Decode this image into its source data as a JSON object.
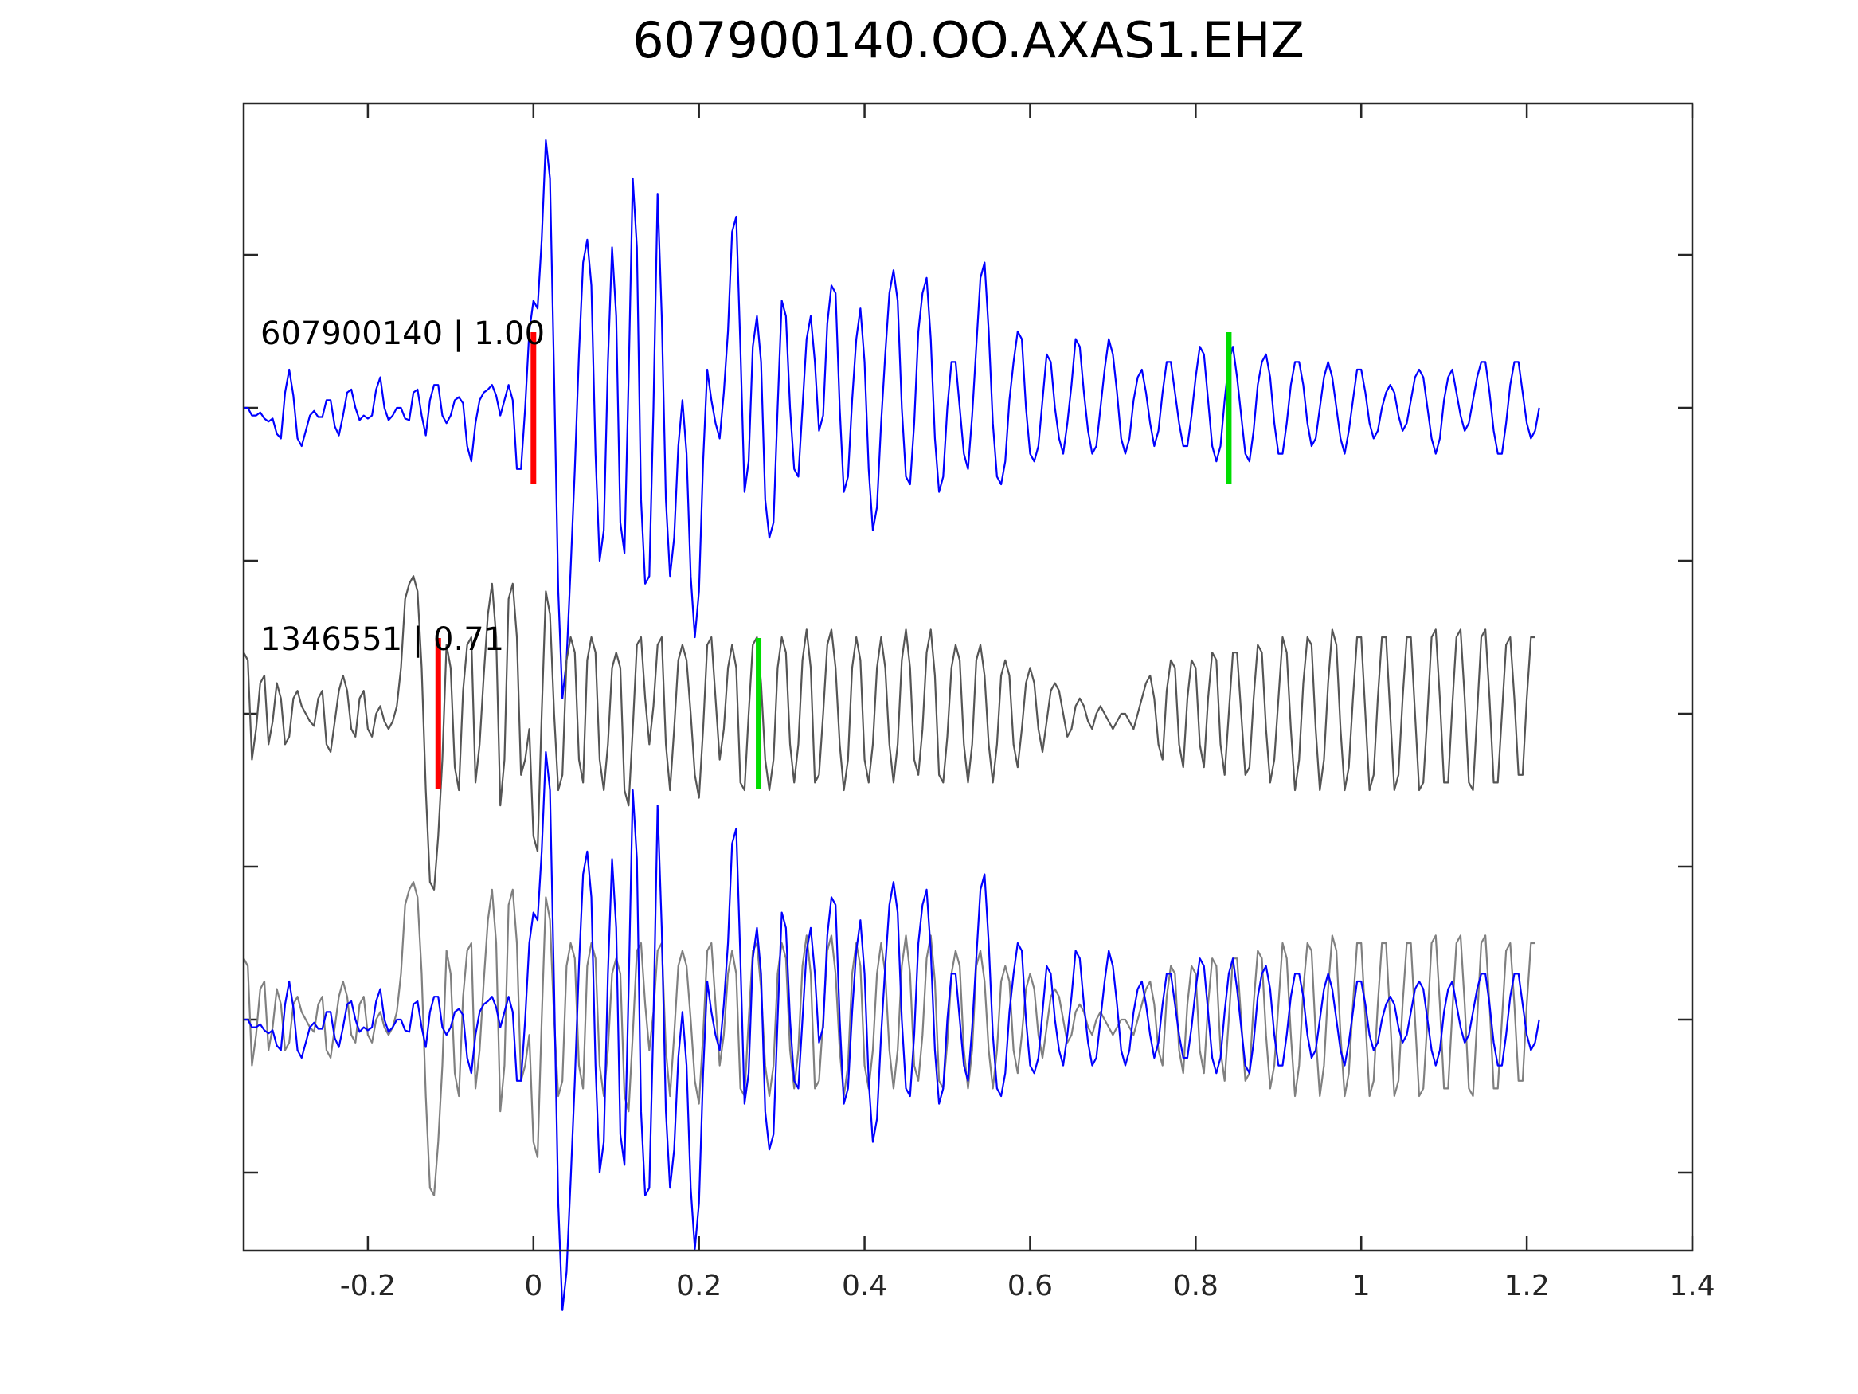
{
  "chart_data": {
    "type": "line",
    "title": "607900140.OO.AXAS1.EHZ",
    "xlabel": "",
    "ylabel": "",
    "xlim": [
      -0.35,
      1.4
    ],
    "x_ticks": [
      -0.2,
      0,
      0.2,
      0.4,
      0.6,
      0.8,
      1,
      1.2,
      1.4
    ],
    "x_tick_labels": [
      "-0.2",
      "0",
      "0.2",
      "0.4",
      "0.6",
      "0.8",
      "1",
      "1.2",
      "1.4"
    ],
    "y_tick_count": 7,
    "y_tick_labels_shown": false,
    "grid": false,
    "sample_interval": 0.005,
    "panels": [
      {
        "label": "607900140 | 1.00",
        "traces": [
          {
            "role": "reference",
            "color": "#0000ff",
            "t0": -0.35,
            "dt": 0.005,
            "values": [
              0.0,
              0.0,
              -0.05,
              -0.05,
              -0.03,
              -0.07,
              -0.09,
              -0.07,
              -0.17,
              -0.2,
              0.1,
              0.25,
              0.08,
              -0.2,
              -0.25,
              -0.15,
              -0.05,
              -0.02,
              -0.06,
              -0.06,
              0.05,
              0.05,
              -0.12,
              -0.18,
              -0.05,
              0.1,
              0.12,
              0.0,
              -0.08,
              -0.05,
              -0.07,
              -0.05,
              0.12,
              0.2,
              0.0,
              -0.08,
              -0.05,
              0.0,
              0.0,
              -0.07,
              -0.08,
              0.1,
              0.12,
              -0.05,
              -0.18,
              0.05,
              0.15,
              0.15,
              -0.05,
              -0.1,
              -0.05,
              0.05,
              0.07,
              0.03,
              -0.25,
              -0.35,
              -0.1,
              0.05,
              0.1,
              0.12,
              0.15,
              0.08,
              -0.05,
              0.05,
              0.15,
              0.05,
              -0.4,
              -0.4,
              0.0,
              0.5,
              0.7,
              0.65,
              1.1,
              1.75,
              1.5,
              0.2,
              -1.2,
              -1.9,
              -1.65,
              -1.05,
              -0.4,
              0.35,
              0.95,
              1.1,
              0.8,
              -0.3,
              -1.0,
              -0.8,
              0.3,
              1.05,
              0.6,
              -0.75,
              -0.95,
              0.2,
              1.5,
              1.05,
              -0.6,
              -1.15,
              -1.1,
              0.0,
              1.4,
              0.6,
              -0.6,
              -1.1,
              -0.85,
              -0.25,
              0.05,
              -0.3,
              -1.1,
              -1.5,
              -1.2,
              -0.35,
              0.25,
              0.05,
              -0.1,
              -0.2,
              0.1,
              0.5,
              1.15,
              1.25,
              0.4,
              -0.55,
              -0.35,
              0.4,
              0.6,
              0.3,
              -0.6,
              -0.85,
              -0.75,
              0.0,
              0.7,
              0.6,
              0.0,
              -0.4,
              -0.45,
              0.0,
              0.45,
              0.6,
              0.3,
              -0.15,
              -0.05,
              0.55,
              0.8,
              0.75,
              0.0,
              -0.55,
              -0.45,
              0.05,
              0.45,
              0.65,
              0.3,
              -0.4,
              -0.8,
              -0.65,
              -0.1,
              0.35,
              0.75,
              0.9,
              0.7,
              0.0,
              -0.45,
              -0.5,
              -0.1,
              0.5,
              0.75,
              0.85,
              0.45,
              -0.2,
              -0.55,
              -0.45,
              0.0,
              0.3,
              0.3,
              0.0,
              -0.3,
              -0.4,
              -0.05,
              0.4,
              0.85,
              0.95,
              0.5,
              -0.1,
              -0.45,
              -0.5,
              -0.35,
              0.05,
              0.3,
              0.5,
              0.45,
              0.0,
              -0.3,
              -0.35,
              -0.25,
              0.05,
              0.35,
              0.3,
              0.0,
              -0.2,
              -0.3,
              -0.1,
              0.15,
              0.45,
              0.4,
              0.1,
              -0.15,
              -0.3,
              -0.25,
              0.0,
              0.25,
              0.45,
              0.35,
              0.1,
              -0.2,
              -0.3,
              -0.2,
              0.05,
              0.2,
              0.25,
              0.1,
              -0.1,
              -0.25,
              -0.15,
              0.1,
              0.3,
              0.3,
              0.1,
              -0.1,
              -0.25,
              -0.25,
              -0.05,
              0.2,
              0.4,
              0.35,
              0.05,
              -0.25,
              -0.35,
              -0.25,
              0.05,
              0.3,
              0.4,
              0.2,
              -0.05,
              -0.3,
              -0.35,
              -0.15,
              0.15,
              0.3,
              0.35,
              0.2,
              -0.1,
              -0.3,
              -0.3,
              -0.1,
              0.15,
              0.3,
              0.3,
              0.15,
              -0.1,
              -0.25,
              -0.2,
              0.0,
              0.2,
              0.3,
              0.2,
              0.0,
              -0.2,
              -0.3,
              -0.15,
              0.05,
              0.25,
              0.25,
              0.1,
              -0.1,
              -0.2,
              -0.15,
              0.0,
              0.1,
              0.15,
              0.1,
              -0.05,
              -0.15,
              -0.1,
              0.05,
              0.2,
              0.25,
              0.2,
              0.0,
              -0.2,
              -0.3,
              -0.2,
              0.05,
              0.2,
              0.25,
              0.1,
              -0.05,
              -0.15,
              -0.1,
              0.05,
              0.2,
              0.3,
              0.3,
              0.1,
              -0.15,
              -0.3,
              -0.3,
              -0.1,
              0.15,
              0.3,
              0.3,
              0.1,
              -0.1,
              -0.2,
              -0.15,
              0.0
            ],
            "markers": [
              {
                "t": 0.0,
                "color": "#ff0000"
              },
              {
                "t": 0.84,
                "color": "#00dd00"
              }
            ]
          }
        ]
      },
      {
        "label": "1346551 | 0.71",
        "traces": [
          {
            "role": "matched",
            "color": "#555555",
            "t0": -0.35,
            "dt": 0.005,
            "values": [
              0.4,
              0.35,
              -0.3,
              -0.1,
              0.2,
              0.25,
              -0.2,
              -0.05,
              0.2,
              0.1,
              -0.2,
              -0.15,
              0.1,
              0.15,
              0.05,
              0.0,
              -0.05,
              -0.08,
              0.1,
              0.15,
              -0.2,
              -0.25,
              -0.05,
              0.15,
              0.25,
              0.15,
              -0.1,
              -0.15,
              0.1,
              0.15,
              -0.1,
              -0.15,
              0.0,
              0.05,
              -0.05,
              -0.1,
              -0.05,
              0.05,
              0.3,
              0.75,
              0.85,
              0.9,
              0.8,
              0.3,
              -0.5,
              -1.1,
              -1.15,
              -0.8,
              -0.3,
              0.45,
              0.3,
              -0.35,
              -0.5,
              0.15,
              0.45,
              0.5,
              -0.45,
              -0.2,
              0.25,
              0.65,
              0.85,
              0.5,
              -0.6,
              -0.3,
              0.75,
              0.85,
              0.5,
              -0.4,
              -0.3,
              -0.1,
              -0.8,
              -0.9,
              0.0,
              0.8,
              0.65,
              0.0,
              -0.5,
              -0.4,
              0.35,
              0.5,
              0.4,
              -0.3,
              -0.45,
              0.35,
              0.5,
              0.4,
              -0.3,
              -0.5,
              -0.2,
              0.3,
              0.4,
              0.3,
              -0.5,
              -0.6,
              -0.1,
              0.45,
              0.5,
              0.1,
              -0.2,
              0.05,
              0.45,
              0.5,
              -0.2,
              -0.5,
              -0.1,
              0.35,
              0.45,
              0.35,
              0.0,
              -0.4,
              -0.55,
              -0.1,
              0.45,
              0.5,
              0.1,
              -0.3,
              -0.1,
              0.3,
              0.45,
              0.3,
              -0.45,
              -0.5,
              0.0,
              0.45,
              0.5,
              0.2,
              -0.3,
              -0.5,
              -0.3,
              0.3,
              0.5,
              0.4,
              -0.2,
              -0.45,
              -0.2,
              0.35,
              0.55,
              0.3,
              -0.45,
              -0.4,
              0.0,
              0.45,
              0.55,
              0.3,
              -0.2,
              -0.5,
              -0.3,
              0.3,
              0.5,
              0.35,
              -0.3,
              -0.45,
              -0.2,
              0.3,
              0.5,
              0.3,
              -0.2,
              -0.45,
              -0.2,
              0.35,
              0.55,
              0.3,
              -0.3,
              -0.4,
              -0.1,
              0.4,
              0.55,
              0.25,
              -0.4,
              -0.45,
              -0.15,
              0.3,
              0.45,
              0.35,
              -0.2,
              -0.45,
              -0.2,
              0.35,
              0.45,
              0.25,
              -0.2,
              -0.45,
              -0.2,
              0.25,
              0.35,
              0.25,
              -0.2,
              -0.35,
              -0.1,
              0.2,
              0.3,
              0.2,
              -0.1,
              -0.25,
              -0.05,
              0.15,
              0.2,
              0.15,
              0.0,
              -0.15,
              -0.1,
              0.05,
              0.1,
              0.05,
              -0.05,
              -0.1,
              0.0,
              0.05,
              0.0,
              -0.05,
              -0.1,
              -0.05,
              0.0,
              0.0,
              -0.05,
              -0.1,
              0.0,
              0.1,
              0.2,
              0.25,
              0.1,
              -0.2,
              -0.3,
              0.15,
              0.35,
              0.3,
              -0.2,
              -0.35,
              0.1,
              0.35,
              0.3,
              -0.2,
              -0.35,
              0.1,
              0.4,
              0.35,
              -0.2,
              -0.4,
              0.0,
              0.4,
              0.4,
              0.0,
              -0.4,
              -0.35,
              0.1,
              0.45,
              0.4,
              -0.1,
              -0.45,
              -0.3,
              0.1,
              0.5,
              0.4,
              -0.1,
              -0.5,
              -0.3,
              0.2,
              0.5,
              0.45,
              -0.1,
              -0.5,
              -0.3,
              0.2,
              0.55,
              0.45,
              -0.1,
              -0.5,
              -0.35,
              0.1,
              0.5,
              0.5,
              0.0,
              -0.5,
              -0.4,
              0.1,
              0.5,
              0.5,
              0.0,
              -0.5,
              -0.4,
              0.1,
              0.5,
              0.5,
              0.0,
              -0.5,
              -0.45,
              0.0,
              0.5,
              0.55,
              0.1,
              -0.45,
              -0.45,
              0.05,
              0.5,
              0.55,
              0.1,
              -0.45,
              -0.5,
              0.0,
              0.5,
              0.55,
              0.1,
              -0.45,
              -0.45,
              0.0,
              0.45,
              0.5,
              0.1,
              -0.4,
              -0.4,
              0.1,
              0.5,
              0.5
            ],
            "markers": [
              {
                "t": -0.115,
                "color": "#ff0000"
              },
              {
                "t": 0.272,
                "color": "#00dd00"
              }
            ]
          }
        ]
      },
      {
        "label": "",
        "traces": [
          {
            "role": "matched-overlay",
            "color": "#808080",
            "source_panel": 1
          },
          {
            "role": "reference-overlay",
            "color": "#0000ff",
            "source_panel": 0
          }
        ]
      }
    ]
  }
}
